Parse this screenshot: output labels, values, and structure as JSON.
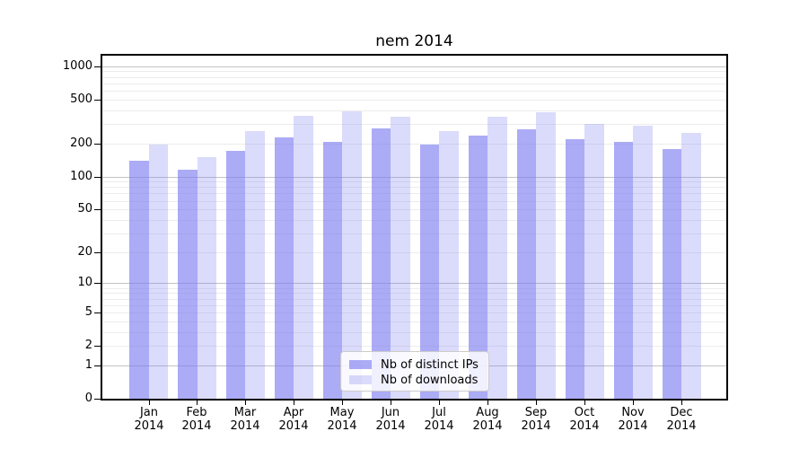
{
  "chart_data": {
    "type": "bar",
    "title": "nem 2014",
    "scale": "log1p",
    "categories": [
      "Jan 2014",
      "Feb 2014",
      "Mar 2014",
      "Apr 2014",
      "May 2014",
      "Jun 2014",
      "Jul 2014",
      "Aug 2014",
      "Sep 2014",
      "Oct 2014",
      "Nov 2014",
      "Dec 2014"
    ],
    "series": [
      {
        "name": "Nb of distinct IPs",
        "values": [
          140,
          115,
          170,
          226,
          208,
          275,
          194,
          234,
          270,
          220,
          206,
          177
        ]
      },
      {
        "name": "Nb of downloads",
        "values": [
          194,
          151,
          257,
          352,
          387,
          346,
          257,
          348,
          381,
          302,
          287,
          247
        ]
      }
    ],
    "y_ticks": [
      0,
      1,
      2,
      5,
      10,
      20,
      50,
      100,
      200,
      500,
      1000
    ],
    "ylim": [
      0,
      1240
    ],
    "xlabel": "",
    "ylabel": "",
    "grid": "on",
    "legend_position": "lower-center"
  },
  "colors": {
    "bar_distinct_ips": "rgba(122,122,240,0.63)",
    "bar_downloads": "rgba(122,122,240,0.27)",
    "grid_major": "#c3c3c3",
    "grid_minor": "#ececec",
    "spine": "#000000",
    "legend_border": "#cccccc"
  }
}
